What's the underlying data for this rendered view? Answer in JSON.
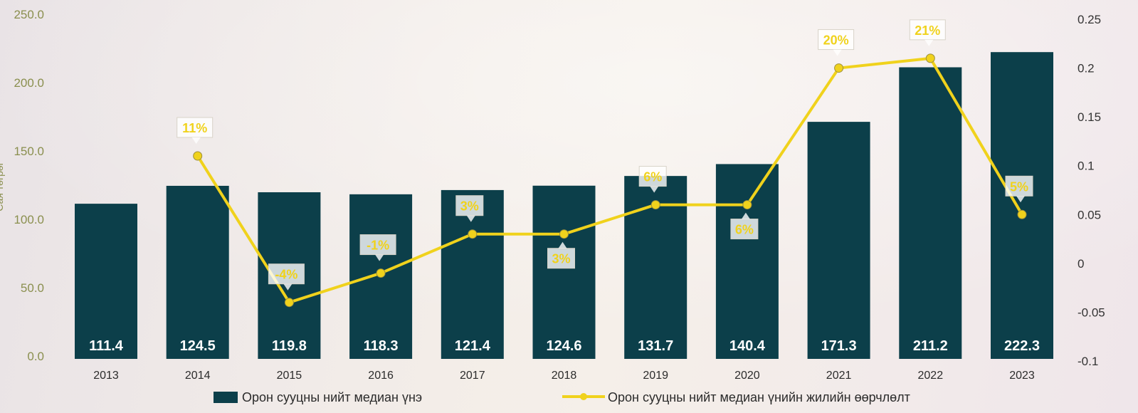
{
  "chart_data": {
    "type": "bar",
    "categories": [
      "2013",
      "2014",
      "2015",
      "2016",
      "2017",
      "2018",
      "2019",
      "2020",
      "2021",
      "2022",
      "2023"
    ],
    "series": [
      {
        "name": "Орон сууцны нийт медиан үнэ",
        "type": "bar",
        "axis": "left",
        "values": [
          111.4,
          124.5,
          119.8,
          118.3,
          121.4,
          124.6,
          131.7,
          140.4,
          171.3,
          211.2,
          222.3
        ],
        "labels": [
          "111.4",
          "124.5",
          "119.8",
          "118.3",
          "121.4",
          "124.6",
          "131.7",
          "140.4",
          "171.3",
          "211.2",
          "222.3"
        ],
        "color": "#0c3f4a"
      },
      {
        "name": "Орон сууцны нийт медиан үнийн жилийн өөрчлөлт",
        "type": "line",
        "axis": "right",
        "x": [
          "2014",
          "2015",
          "2016",
          "2017",
          "2018",
          "2019",
          "2020",
          "2021",
          "2022",
          "2023"
        ],
        "values": [
          0.11,
          -0.04,
          -0.01,
          0.03,
          0.03,
          0.06,
          0.06,
          0.2,
          0.21,
          0.05
        ],
        "labels": [
          "11%",
          "-4%",
          "-1%",
          "3%",
          "3%",
          "6%",
          "6%",
          "20%",
          "21%",
          "5%"
        ],
        "color": "#f0d21c"
      }
    ],
    "ylabel": "Сая төгрөг",
    "ylim": [
      0,
      250
    ],
    "y_ticks": [
      "0.0",
      "50.0",
      "100.0",
      "150.0",
      "200.0",
      "250.0"
    ],
    "y2lim": [
      -0.1,
      0.25
    ],
    "y2_ticks": [
      "-0.1",
      "-0.05",
      "0",
      "0.05",
      "0.1",
      "0.15",
      "0.2",
      "0.25"
    ],
    "grid": false,
    "legend": "bottom"
  }
}
